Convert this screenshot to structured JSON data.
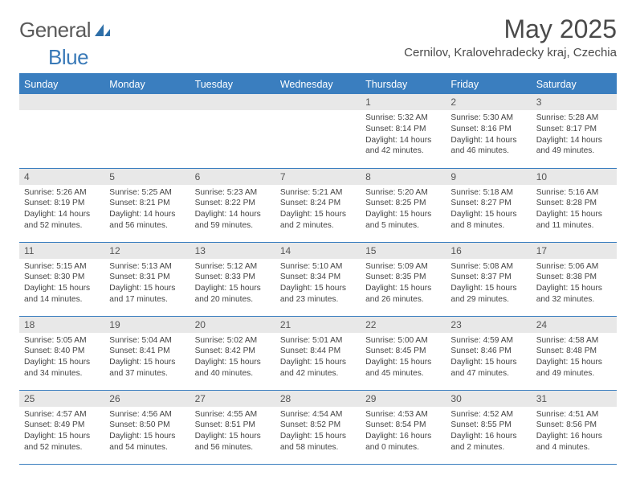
{
  "logo": {
    "word1": "General",
    "word2": "Blue"
  },
  "title": "May 2025",
  "location": "Cernilov, Kralovehradecky kraj, Czechia",
  "colors": {
    "header_bg": "#3a7ebf",
    "header_text": "#ffffff",
    "daynum_bg": "#e8e8e8",
    "border": "#3a7ebf",
    "logo_gray": "#5a5a5a",
    "logo_blue": "#3a7ab8"
  },
  "day_headers": [
    "Sunday",
    "Monday",
    "Tuesday",
    "Wednesday",
    "Thursday",
    "Friday",
    "Saturday"
  ],
  "weeks": [
    [
      null,
      null,
      null,
      null,
      {
        "num": "1",
        "sunrise": "5:32 AM",
        "sunset": "8:14 PM",
        "daylight": "14 hours and 42 minutes."
      },
      {
        "num": "2",
        "sunrise": "5:30 AM",
        "sunset": "8:16 PM",
        "daylight": "14 hours and 46 minutes."
      },
      {
        "num": "3",
        "sunrise": "5:28 AM",
        "sunset": "8:17 PM",
        "daylight": "14 hours and 49 minutes."
      }
    ],
    [
      {
        "num": "4",
        "sunrise": "5:26 AM",
        "sunset": "8:19 PM",
        "daylight": "14 hours and 52 minutes."
      },
      {
        "num": "5",
        "sunrise": "5:25 AM",
        "sunset": "8:21 PM",
        "daylight": "14 hours and 56 minutes."
      },
      {
        "num": "6",
        "sunrise": "5:23 AM",
        "sunset": "8:22 PM",
        "daylight": "14 hours and 59 minutes."
      },
      {
        "num": "7",
        "sunrise": "5:21 AM",
        "sunset": "8:24 PM",
        "daylight": "15 hours and 2 minutes."
      },
      {
        "num": "8",
        "sunrise": "5:20 AM",
        "sunset": "8:25 PM",
        "daylight": "15 hours and 5 minutes."
      },
      {
        "num": "9",
        "sunrise": "5:18 AM",
        "sunset": "8:27 PM",
        "daylight": "15 hours and 8 minutes."
      },
      {
        "num": "10",
        "sunrise": "5:16 AM",
        "sunset": "8:28 PM",
        "daylight": "15 hours and 11 minutes."
      }
    ],
    [
      {
        "num": "11",
        "sunrise": "5:15 AM",
        "sunset": "8:30 PM",
        "daylight": "15 hours and 14 minutes."
      },
      {
        "num": "12",
        "sunrise": "5:13 AM",
        "sunset": "8:31 PM",
        "daylight": "15 hours and 17 minutes."
      },
      {
        "num": "13",
        "sunrise": "5:12 AM",
        "sunset": "8:33 PM",
        "daylight": "15 hours and 20 minutes."
      },
      {
        "num": "14",
        "sunrise": "5:10 AM",
        "sunset": "8:34 PM",
        "daylight": "15 hours and 23 minutes."
      },
      {
        "num": "15",
        "sunrise": "5:09 AM",
        "sunset": "8:35 PM",
        "daylight": "15 hours and 26 minutes."
      },
      {
        "num": "16",
        "sunrise": "5:08 AM",
        "sunset": "8:37 PM",
        "daylight": "15 hours and 29 minutes."
      },
      {
        "num": "17",
        "sunrise": "5:06 AM",
        "sunset": "8:38 PM",
        "daylight": "15 hours and 32 minutes."
      }
    ],
    [
      {
        "num": "18",
        "sunrise": "5:05 AM",
        "sunset": "8:40 PM",
        "daylight": "15 hours and 34 minutes."
      },
      {
        "num": "19",
        "sunrise": "5:04 AM",
        "sunset": "8:41 PM",
        "daylight": "15 hours and 37 minutes."
      },
      {
        "num": "20",
        "sunrise": "5:02 AM",
        "sunset": "8:42 PM",
        "daylight": "15 hours and 40 minutes."
      },
      {
        "num": "21",
        "sunrise": "5:01 AM",
        "sunset": "8:44 PM",
        "daylight": "15 hours and 42 minutes."
      },
      {
        "num": "22",
        "sunrise": "5:00 AM",
        "sunset": "8:45 PM",
        "daylight": "15 hours and 45 minutes."
      },
      {
        "num": "23",
        "sunrise": "4:59 AM",
        "sunset": "8:46 PM",
        "daylight": "15 hours and 47 minutes."
      },
      {
        "num": "24",
        "sunrise": "4:58 AM",
        "sunset": "8:48 PM",
        "daylight": "15 hours and 49 minutes."
      }
    ],
    [
      {
        "num": "25",
        "sunrise": "4:57 AM",
        "sunset": "8:49 PM",
        "daylight": "15 hours and 52 minutes."
      },
      {
        "num": "26",
        "sunrise": "4:56 AM",
        "sunset": "8:50 PM",
        "daylight": "15 hours and 54 minutes."
      },
      {
        "num": "27",
        "sunrise": "4:55 AM",
        "sunset": "8:51 PM",
        "daylight": "15 hours and 56 minutes."
      },
      {
        "num": "28",
        "sunrise": "4:54 AM",
        "sunset": "8:52 PM",
        "daylight": "15 hours and 58 minutes."
      },
      {
        "num": "29",
        "sunrise": "4:53 AM",
        "sunset": "8:54 PM",
        "daylight": "16 hours and 0 minutes."
      },
      {
        "num": "30",
        "sunrise": "4:52 AM",
        "sunset": "8:55 PM",
        "daylight": "16 hours and 2 minutes."
      },
      {
        "num": "31",
        "sunrise": "4:51 AM",
        "sunset": "8:56 PM",
        "daylight": "16 hours and 4 minutes."
      }
    ]
  ],
  "labels": {
    "sunrise": "Sunrise:",
    "sunset": "Sunset:",
    "daylight": "Daylight:"
  }
}
